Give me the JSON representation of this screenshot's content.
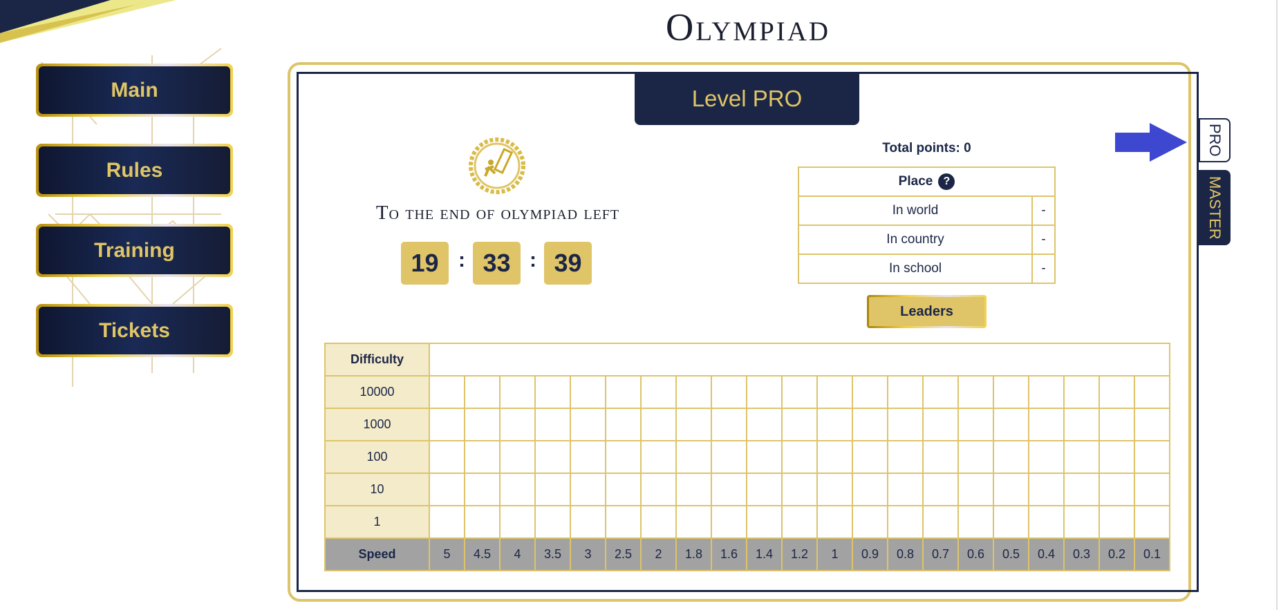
{
  "title": "Olympiad",
  "nav": [
    {
      "label": "Main"
    },
    {
      "label": "Rules"
    },
    {
      "label": "Training"
    },
    {
      "label": "Tickets"
    }
  ],
  "level_tab": "Level PRO",
  "countdown": {
    "label": "To the end of olympiad left",
    "hours": "19",
    "minutes": "33",
    "seconds": "39",
    "separator": ":"
  },
  "total_points": "Total points: 0",
  "place": {
    "header": "Place",
    "help": "?",
    "rows": [
      {
        "label": "In world",
        "value": "-"
      },
      {
        "label": "In country",
        "value": "-"
      },
      {
        "label": "In school",
        "value": "-"
      }
    ]
  },
  "leaders_button": "Leaders",
  "grid": {
    "difficulty_label": "Difficulty",
    "difficulties": [
      "10000",
      "1000",
      "100",
      "10",
      "1"
    ],
    "speed_label": "Speed",
    "speeds": [
      "5",
      "4.5",
      "4",
      "3.5",
      "3",
      "2.5",
      "2",
      "1.8",
      "1.6",
      "1.4",
      "1.2",
      "1",
      "0.9",
      "0.8",
      "0.7",
      "0.6",
      "0.5",
      "0.4",
      "0.3",
      "0.2",
      "0.1"
    ]
  },
  "side_tabs": {
    "pro": "PRO",
    "master": "MASTER"
  },
  "colors": {
    "navy": "#1b2647",
    "gold": "#ddc46a",
    "arrow": "#3d47d0"
  }
}
